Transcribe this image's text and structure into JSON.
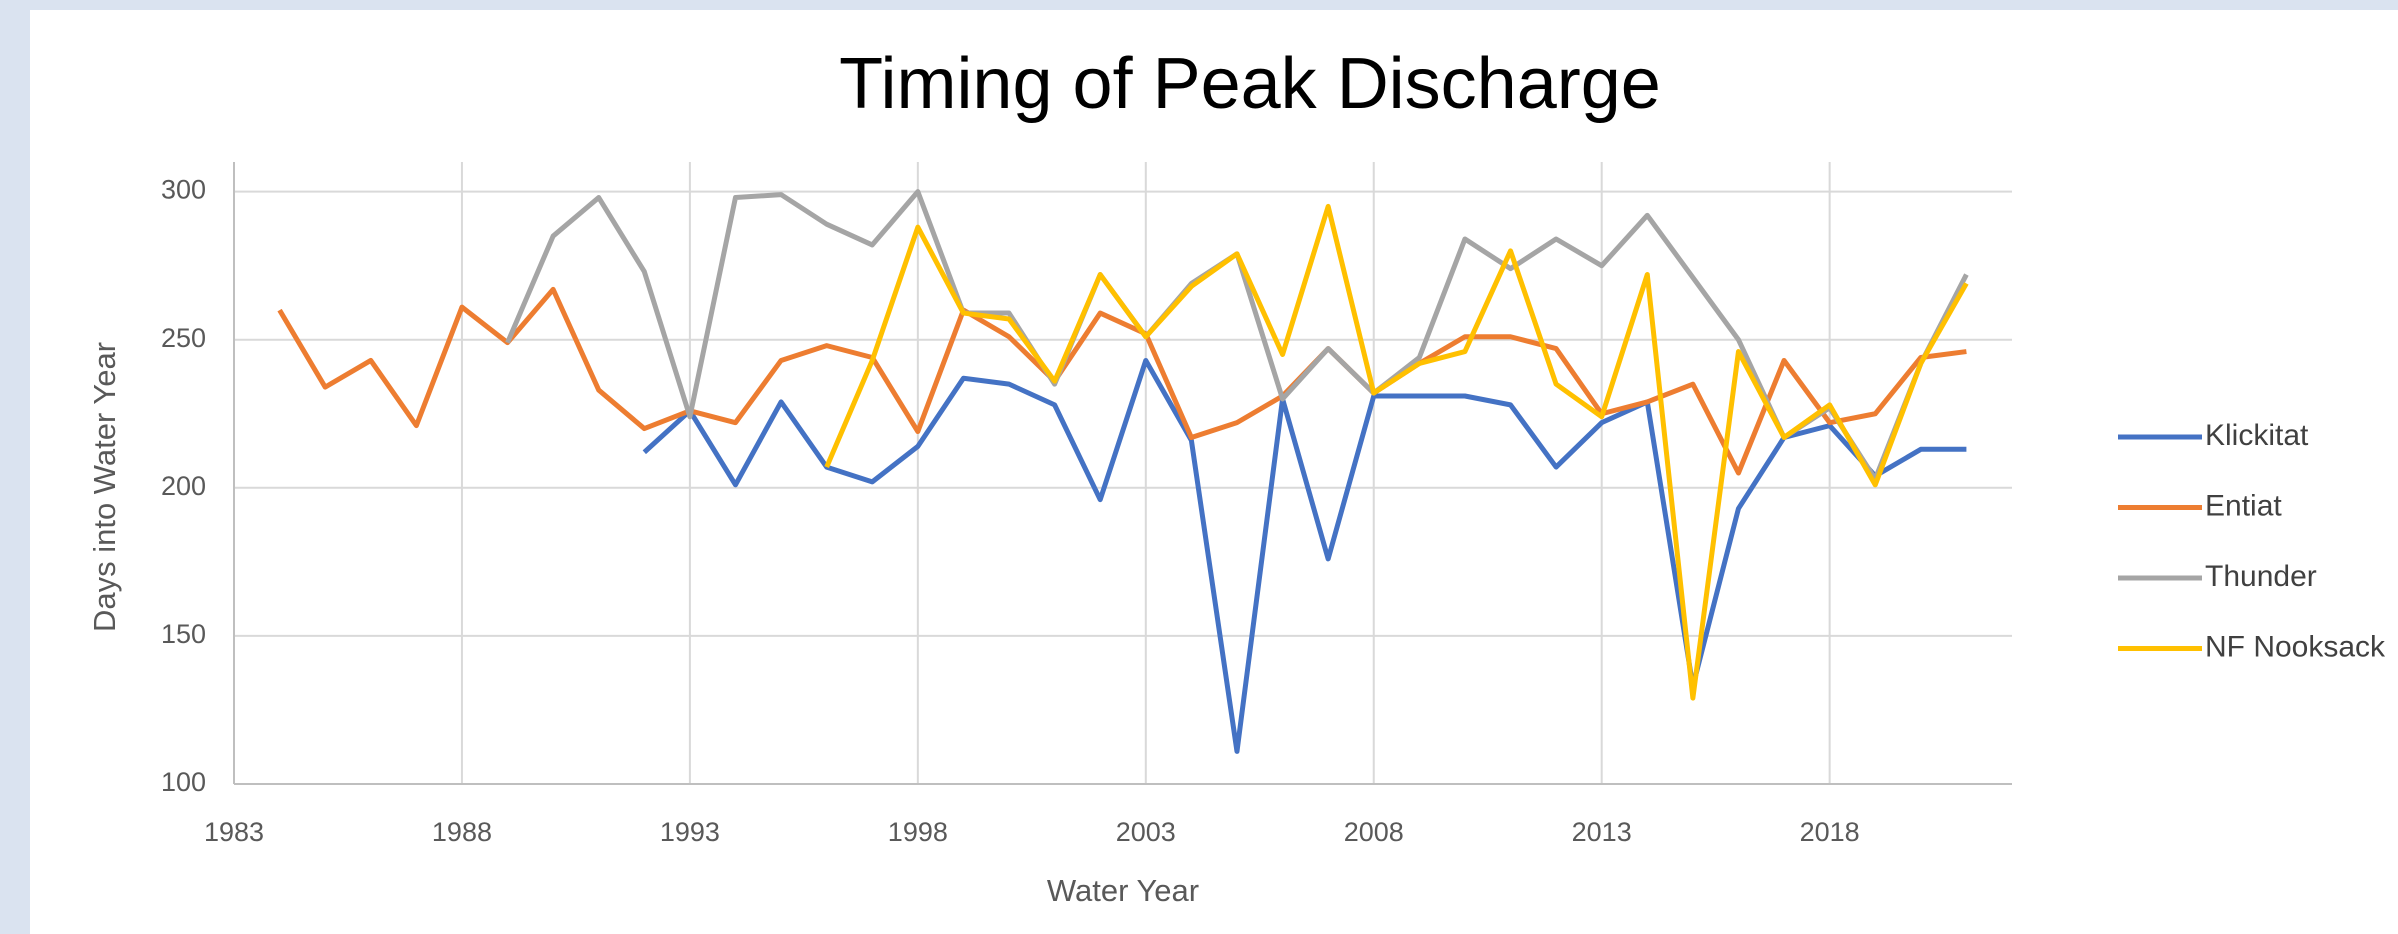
{
  "chart_data": {
    "type": "line",
    "title": "Timing of Peak Discharge",
    "x_label": "Water Year",
    "y_label": "Days into Water Year",
    "x": [
      1984,
      1985,
      1986,
      1987,
      1988,
      1989,
      1990,
      1991,
      1992,
      1993,
      1994,
      1995,
      1996,
      1997,
      1998,
      1999,
      2000,
      2001,
      2002,
      2003,
      2004,
      2005,
      2006,
      2007,
      2008,
      2009,
      2010,
      2011,
      2012,
      2013,
      2014,
      2015,
      2016,
      2017,
      2018,
      2019,
      2020,
      2021
    ],
    "series": [
      {
        "name": "Klickitat",
        "color": "#4472c4",
        "values": [
          null,
          null,
          null,
          null,
          null,
          null,
          null,
          null,
          212,
          226,
          201,
          229,
          207,
          202,
          214,
          237,
          235,
          228,
          196,
          243,
          216,
          111,
          230,
          176,
          231,
          231,
          231,
          228,
          207,
          222,
          229,
          133,
          193,
          217,
          221,
          204,
          213,
          213
        ]
      },
      {
        "name": "Entiat",
        "color": "#ed7d31",
        "values": [
          260,
          234,
          243,
          221,
          261,
          249,
          267,
          233,
          220,
          226,
          222,
          243,
          248,
          244,
          219,
          260,
          251,
          236,
          259,
          252,
          217,
          222,
          231,
          247,
          232,
          242,
          251,
          251,
          247,
          225,
          229,
          235,
          205,
          243,
          222,
          225,
          244,
          246
        ]
      },
      {
        "name": "Thunder",
        "color": "#a5a5a5",
        "values": [
          null,
          null,
          null,
          null,
          null,
          249,
          285,
          298,
          273,
          224,
          298,
          299,
          289,
          282,
          300,
          259,
          259,
          235,
          272,
          251,
          269,
          279,
          230,
          247,
          232,
          244,
          284,
          274,
          284,
          275,
          292,
          271,
          250,
          217,
          227,
          203,
          242,
          272
        ]
      },
      {
        "name": "NF Nooksack",
        "color": "#ffc000",
        "values": [
          null,
          null,
          null,
          null,
          null,
          null,
          null,
          null,
          null,
          null,
          null,
          null,
          207,
          243,
          288,
          259,
          257,
          236,
          272,
          251,
          268,
          279,
          245,
          295,
          232,
          242,
          246,
          280,
          235,
          224,
          272,
          129,
          246,
          217,
          228,
          201,
          242,
          269
        ]
      }
    ],
    "xlim": [
      1983,
      2022
    ],
    "xticks": [
      1983,
      1988,
      1993,
      1998,
      2003,
      2008,
      2013,
      2018
    ],
    "ylim": [
      100,
      310
    ],
    "yticks": [
      100,
      150,
      200,
      250,
      300
    ],
    "grid": true,
    "legend": "right"
  }
}
